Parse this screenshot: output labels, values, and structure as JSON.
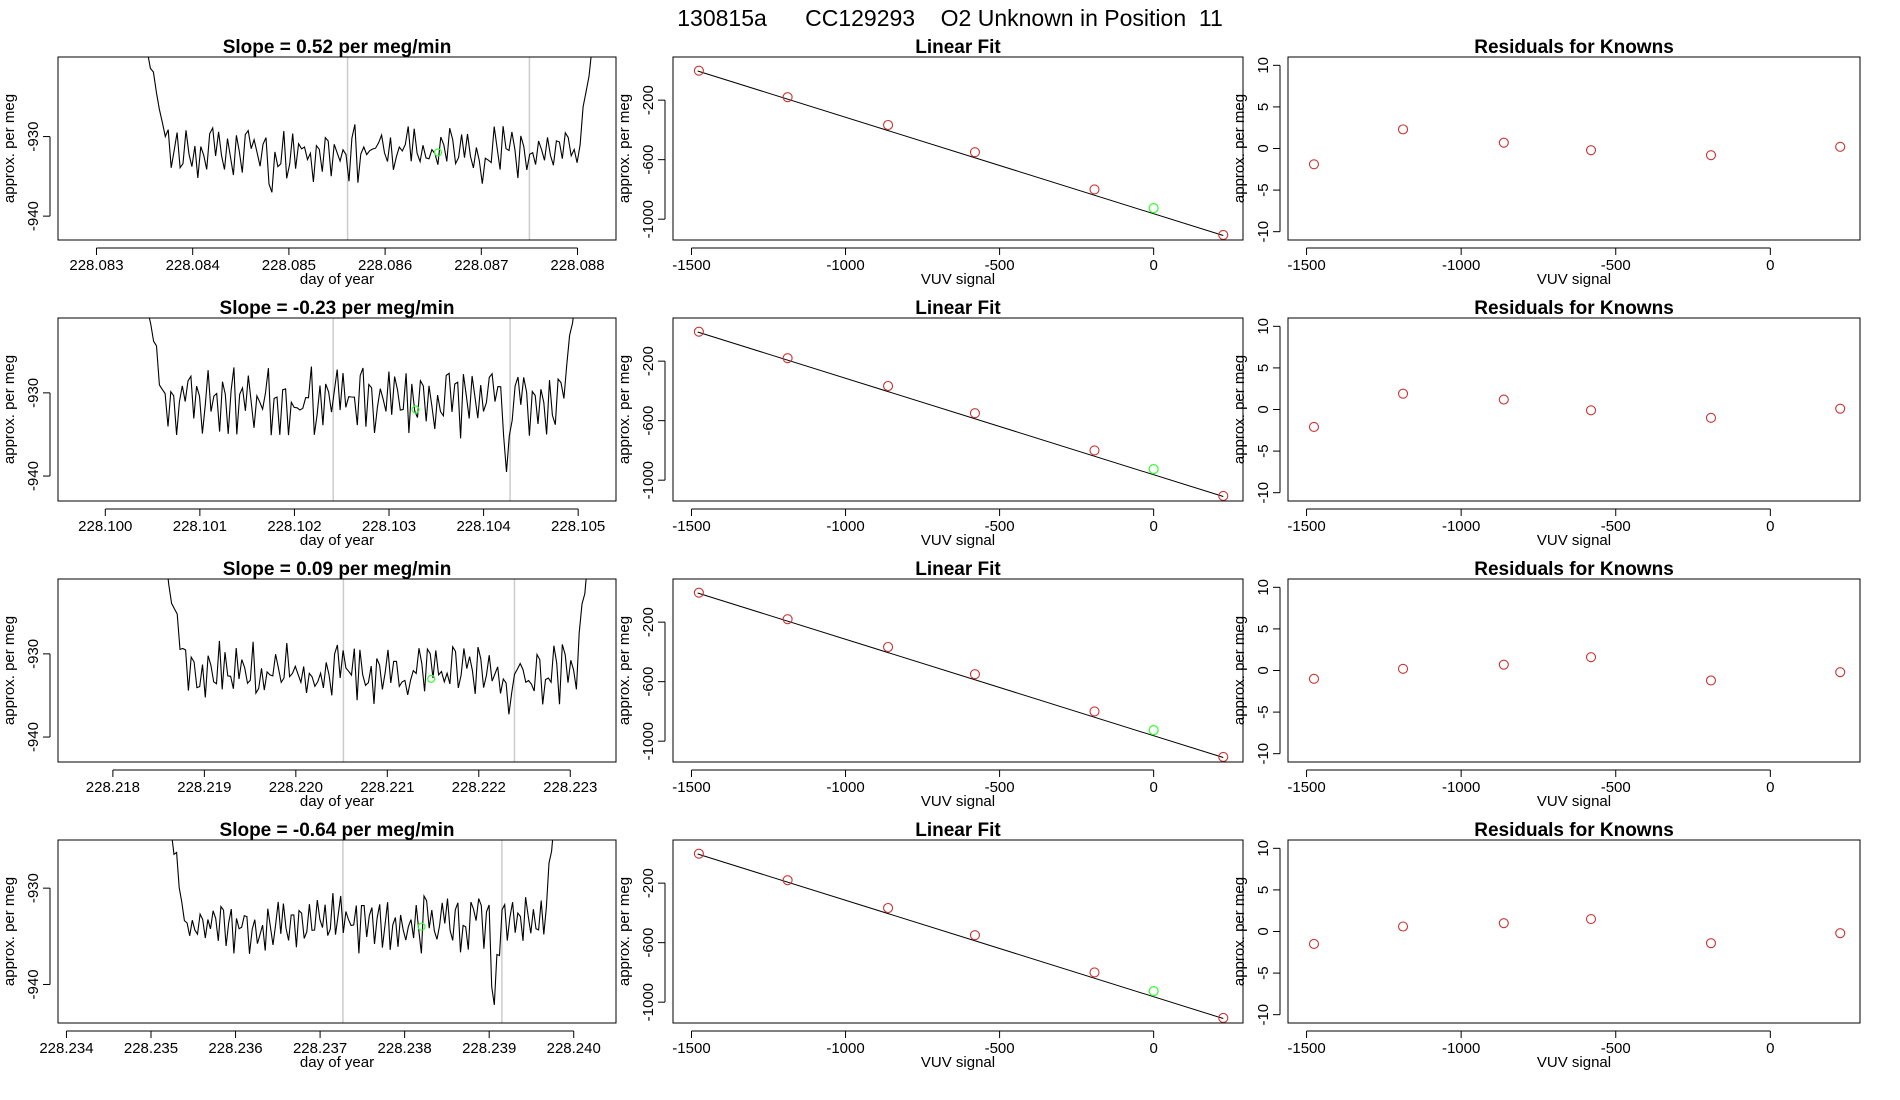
{
  "figure": {
    "title": "130815a      CC129293    O2 Unknown in Position  11"
  },
  "colors": {
    "trace": "#000000",
    "marker_vertical": "#cccccc",
    "unknown_point": "#33ff33",
    "known_point": "#cc3333"
  },
  "chart_data": [
    {
      "type": "line",
      "title": "Slope =  0.52  per meg/min",
      "xlabel": "day of year",
      "ylabel": "approx. per meg",
      "x_ticks": [
        "228.083",
        "228.084",
        "228.085",
        "228.086",
        "228.087",
        "228.088"
      ],
      "x_tick_values": [
        228.083,
        228.084,
        228.085,
        228.086,
        228.087,
        228.088
      ],
      "y_ticks": [
        "-930",
        "-940"
      ],
      "y_tick_values": [
        -930,
        -940
      ],
      "xlim": [
        228.0826,
        228.0884
      ],
      "ylim": [
        -943,
        -920
      ],
      "series": [
        {
          "x_start": 228.08353,
          "x_end": 228.08815,
          "seed": 11,
          "y_center": -931.8,
          "y_amp": 2.3,
          "dips": [
            [
              0.28,
              -4.5
            ]
          ],
          "lead_high": -919,
          "trail_high": -919
        }
      ],
      "vlines": [
        228.08561,
        228.0875
      ],
      "unknown_point": {
        "x": 228.08655,
        "y": -932
      }
    },
    {
      "type": "scatter",
      "title": "Linear Fit",
      "xlabel": "VUV signal",
      "ylabel": "approx. per meg",
      "x_ticks": [
        "-1500",
        "-1000",
        "-500",
        "0"
      ],
      "x_tick_values": [
        -1500,
        -1000,
        -500,
        0
      ],
      "y_ticks": [
        "-200",
        "-600",
        "-1000"
      ],
      "y_tick_values": [
        -200,
        -600,
        -1000
      ],
      "xlim": [
        -1560,
        290
      ],
      "ylim": [
        -1140,
        90
      ],
      "fit_line": {
        "x": [
          -1480,
          226
        ],
        "y": [
          -4,
          -1110
        ]
      },
      "knowns": {
        "x": [
          -1476,
          -1188,
          -862,
          -580,
          -192,
          226
        ],
        "y": [
          -2,
          -180,
          -367,
          -550,
          -800,
          -1106
        ]
      },
      "unknown": {
        "x": 0,
        "y": -926
      }
    },
    {
      "type": "scatter",
      "title": "Residuals for Knowns",
      "xlabel": "VUV signal",
      "ylabel": "approx. per meg",
      "x_ticks": [
        "-1500",
        "-1000",
        "-500",
        "0"
      ],
      "x_tick_values": [
        -1500,
        -1000,
        -500,
        0
      ],
      "y_ticks": [
        "10",
        "5",
        "0",
        "-5",
        "-10"
      ],
      "y_tick_values": [
        10,
        5,
        0,
        -5,
        -10
      ],
      "xlim": [
        -1560,
        290
      ],
      "ylim": [
        -11,
        11
      ],
      "knowns": {
        "x": [
          -1476,
          -1188,
          -862,
          -580,
          -192,
          226
        ],
        "y": [
          -1.9,
          2.3,
          0.7,
          -0.2,
          -0.8,
          0.2
        ]
      }
    },
    {
      "type": "line",
      "title": "Slope =  -0.23  per meg/min",
      "xlabel": "day of year",
      "ylabel": "approx. per meg",
      "x_ticks": [
        "228.100",
        "228.101",
        "228.102",
        "228.103",
        "228.104",
        "228.105"
      ],
      "x_tick_values": [
        228.1,
        228.101,
        228.102,
        228.103,
        228.104,
        228.105
      ],
      "y_ticks": [
        "-930",
        "-940"
      ],
      "y_tick_values": [
        -930,
        -940
      ],
      "xlim": [
        228.0995,
        228.1054
      ],
      "ylim": [
        -943,
        -921
      ],
      "series": [
        {
          "x_start": 228.10042,
          "x_end": 228.10497,
          "seed": 23,
          "y_center": -930.8,
          "y_amp": 2.6,
          "dips": [
            [
              0.84,
              -10
            ]
          ],
          "lead_high": -919,
          "trail_high": -919
        }
      ],
      "vlines": [
        228.10241,
        228.10428
      ],
      "unknown_point": {
        "x": 228.10328,
        "y": -932
      }
    },
    {
      "type": "scatter",
      "title": "Linear Fit",
      "xlabel": "VUV signal",
      "ylabel": "approx. per meg",
      "x_ticks": [
        "-1500",
        "-1000",
        "-500",
        "0"
      ],
      "x_tick_values": [
        -1500,
        -1000,
        -500,
        0
      ],
      "y_ticks": [
        "-200",
        "-600",
        "-1000"
      ],
      "y_tick_values": [
        -200,
        -600,
        -1000
      ],
      "xlim": [
        -1560,
        290
      ],
      "ylim": [
        -1140,
        90
      ],
      "fit_line": {
        "x": [
          -1480,
          226
        ],
        "y": [
          -4,
          -1110
        ]
      },
      "knowns": {
        "x": [
          -1476,
          -1188,
          -862,
          -580,
          -192,
          226
        ],
        "y": [
          -2,
          -180,
          -367,
          -550,
          -800,
          -1106
        ]
      },
      "unknown": {
        "x": 0,
        "y": -926
      }
    },
    {
      "type": "scatter",
      "title": "Residuals for Knowns",
      "xlabel": "VUV signal",
      "ylabel": "approx. per meg",
      "x_ticks": [
        "-1500",
        "-1000",
        "-500",
        "0"
      ],
      "x_tick_values": [
        -1500,
        -1000,
        -500,
        0
      ],
      "y_ticks": [
        "10",
        "5",
        "0",
        "-5",
        "-10"
      ],
      "y_tick_values": [
        10,
        5,
        0,
        -5,
        -10
      ],
      "xlim": [
        -1560,
        290
      ],
      "ylim": [
        -11,
        11
      ],
      "knowns": {
        "x": [
          -1476,
          -1188,
          -862,
          -580,
          -192,
          226
        ],
        "y": [
          -2.1,
          1.9,
          1.2,
          -0.1,
          -1.0,
          0.1
        ]
      }
    },
    {
      "type": "line",
      "title": "Slope =  0.09  per meg/min",
      "xlabel": "day of year",
      "ylabel": "approx. per meg",
      "x_ticks": [
        "228.218",
        "228.219",
        "228.220",
        "228.221",
        "228.222",
        "228.223"
      ],
      "x_tick_values": [
        228.218,
        228.219,
        228.22,
        228.221,
        228.222,
        228.223
      ],
      "y_ticks": [
        "-930",
        "-940"
      ],
      "y_tick_values": [
        -930,
        -940
      ],
      "xlim": [
        228.2174,
        228.2235
      ],
      "ylim": [
        -943,
        -921
      ],
      "series": [
        {
          "x_start": 228.21858,
          "x_end": 228.22319,
          "seed": 37,
          "y_center": -932.2,
          "y_amp": 2.3,
          "dips": [
            [
              0.82,
              -5
            ]
          ],
          "lead_high": -919,
          "trail_high": -919
        }
      ],
      "vlines": [
        228.22052,
        228.22239
      ],
      "unknown_point": {
        "x": 228.22148,
        "y": -933
      }
    },
    {
      "type": "scatter",
      "title": "Linear Fit",
      "xlabel": "VUV signal",
      "ylabel": "approx. per meg",
      "x_ticks": [
        "-1500",
        "-1000",
        "-500",
        "0"
      ],
      "x_tick_values": [
        -1500,
        -1000,
        -500,
        0
      ],
      "y_ticks": [
        "-200",
        "-600",
        "-1000"
      ],
      "y_tick_values": [
        -200,
        -600,
        -1000
      ],
      "xlim": [
        -1560,
        290
      ],
      "ylim": [
        -1140,
        90
      ],
      "fit_line": {
        "x": [
          -1480,
          226
        ],
        "y": [
          -4,
          -1110
        ]
      },
      "knowns": {
        "x": [
          -1476,
          -1188,
          -862,
          -580,
          -192,
          226
        ],
        "y": [
          -2,
          -180,
          -367,
          -550,
          -800,
          -1106
        ]
      },
      "unknown": {
        "x": 0,
        "y": -926
      }
    },
    {
      "type": "scatter",
      "title": "Residuals for Knowns",
      "xlabel": "VUV signal",
      "ylabel": "approx. per meg",
      "x_ticks": [
        "-1500",
        "-1000",
        "-500",
        "0"
      ],
      "x_tick_values": [
        -1500,
        -1000,
        -500,
        0
      ],
      "y_ticks": [
        "10",
        "5",
        "0",
        "-5",
        "-10"
      ],
      "y_tick_values": [
        10,
        5,
        0,
        -5,
        -10
      ],
      "xlim": [
        -1560,
        290
      ],
      "ylim": [
        -11,
        11
      ],
      "knowns": {
        "x": [
          -1476,
          -1188,
          -862,
          -580,
          -192,
          226
        ],
        "y": [
          -1.0,
          0.2,
          0.7,
          1.6,
          -1.2,
          -0.2
        ]
      }
    },
    {
      "type": "line",
      "title": "Slope =  -0.64  per meg/min",
      "xlabel": "day of year",
      "ylabel": "approx. per meg",
      "x_ticks": [
        "228.234",
        "228.235",
        "228.236",
        "228.237",
        "228.238",
        "228.239",
        "228.240"
      ],
      "x_tick_values": [
        228.234,
        228.235,
        228.236,
        228.237,
        228.238,
        228.239,
        228.24
      ],
      "y_ticks": [
        "-930",
        "-940"
      ],
      "y_tick_values": [
        -930,
        -940
      ],
      "xlim": [
        228.2339,
        228.2405
      ],
      "ylim": [
        -944,
        -925
      ],
      "series": [
        {
          "x_start": 228.23518,
          "x_end": 228.2398,
          "seed": 53,
          "y_center": -933.5,
          "y_amp": 2.0,
          "dips": [
            [
              0.84,
              -10
            ]
          ],
          "lead_high": -920,
          "trail_high": -920
        }
      ],
      "vlines": [
        228.23727,
        228.23915
      ],
      "unknown_point": {
        "x": 228.2382,
        "y": -934
      }
    },
    {
      "type": "scatter",
      "title": "Linear Fit",
      "xlabel": "VUV signal",
      "ylabel": "approx. per meg",
      "x_ticks": [
        "-1500",
        "-1000",
        "-500",
        "0"
      ],
      "x_tick_values": [
        -1500,
        -1000,
        -500,
        0
      ],
      "y_ticks": [
        "-200",
        "-600",
        "-1000"
      ],
      "y_tick_values": [
        -200,
        -600,
        -1000
      ],
      "xlim": [
        -1560,
        290
      ],
      "ylim": [
        -1140,
        90
      ],
      "fit_line": {
        "x": [
          -1480,
          226
        ],
        "y": [
          -4,
          -1110
        ]
      },
      "knowns": {
        "x": [
          -1476,
          -1188,
          -862,
          -580,
          -192,
          226
        ],
        "y": [
          -2,
          -180,
          -367,
          -550,
          -800,
          -1106
        ]
      },
      "unknown": {
        "x": 0,
        "y": -926
      }
    },
    {
      "type": "scatter",
      "title": "Residuals for Knowns",
      "xlabel": "VUV signal",
      "ylabel": "approx. per meg",
      "x_ticks": [
        "-1500",
        "-1000",
        "-500",
        "0"
      ],
      "x_tick_values": [
        -1500,
        -1000,
        -500,
        0
      ],
      "y_ticks": [
        "10",
        "5",
        "0",
        "-5",
        "-10"
      ],
      "y_tick_values": [
        10,
        5,
        0,
        -5,
        -10
      ],
      "xlim": [
        -1560,
        290
      ],
      "ylim": [
        -11,
        11
      ],
      "knowns": {
        "x": [
          -1476,
          -1188,
          -862,
          -580,
          -192,
          226
        ],
        "y": [
          -1.5,
          0.6,
          1.0,
          1.5,
          -1.4,
          -0.2
        ]
      }
    }
  ]
}
